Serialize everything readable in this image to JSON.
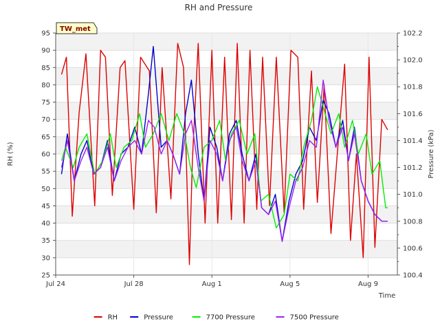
{
  "chart_data": {
    "type": "line",
    "title": "RH and Pressure",
    "site_badge": "TW_met",
    "xlabel": "Time",
    "ylabel": "RH (%)",
    "y2label": "Pressure (kPa)",
    "x_range_days": [
      0,
      17.5
    ],
    "x_ticks": [
      {
        "label": "Jul 24",
        "day": 0
      },
      {
        "label": "Jul 28",
        "day": 4
      },
      {
        "label": "Aug 1",
        "day": 8
      },
      {
        "label": "Aug 5",
        "day": 12
      },
      {
        "label": "Aug 9",
        "day": 16
      }
    ],
    "ylim": [
      25,
      95
    ],
    "y_ticks": [
      25,
      30,
      35,
      40,
      45,
      50,
      55,
      60,
      65,
      70,
      75,
      80,
      85,
      90,
      95
    ],
    "y2lim": [
      100.4,
      102.2
    ],
    "y2_ticks": [
      "100.4",
      "100.6",
      "100.8",
      "101.0",
      "101.2",
      "101.4",
      "101.6",
      "101.8",
      "102.0",
      "102.2"
    ],
    "grid": true,
    "legend_position": "bottom",
    "series": [
      {
        "name": "RH",
        "axis": "left",
        "color": "#dd0000",
        "x": [
          0.3,
          0.55,
          0.85,
          1.2,
          1.55,
          2.0,
          2.3,
          2.55,
          2.9,
          3.3,
          3.55,
          4.0,
          4.35,
          4.8,
          5.15,
          5.45,
          5.9,
          6.25,
          6.55,
          6.85,
          7.0,
          7.3,
          7.65,
          8.0,
          8.3,
          8.65,
          9.0,
          9.3,
          9.65,
          9.95,
          10.3,
          10.6,
          10.95,
          11.3,
          11.7,
          12.05,
          12.4,
          12.7,
          13.1,
          13.4,
          13.75,
          14.1,
          14.45,
          14.8,
          15.1,
          15.4,
          15.75,
          16.05,
          16.35,
          16.7,
          17.0
        ],
        "y": [
          83,
          88,
          42,
          72,
          89,
          45,
          90,
          88,
          48,
          85,
          87,
          44,
          88,
          84,
          43,
          85,
          47,
          92,
          85,
          28,
          58,
          92,
          40,
          90,
          40,
          88,
          41,
          92,
          40,
          90,
          44,
          88,
          45,
          88,
          43,
          90,
          88,
          44,
          84,
          46,
          80,
          37,
          62,
          86,
          35,
          60,
          30,
          88,
          33,
          70,
          67
        ]
      },
      {
        "name": "Pressure",
        "axis": "right",
        "color": "#0000cc",
        "x": [
          0.3,
          0.6,
          0.95,
          1.3,
          1.6,
          1.95,
          2.3,
          2.65,
          3.0,
          3.35,
          3.7,
          4.05,
          4.4,
          4.75,
          5.0,
          5.4,
          5.7,
          6.0,
          6.35,
          6.65,
          6.95,
          7.3,
          7.6,
          7.9,
          8.25,
          8.55,
          8.9,
          9.25,
          9.55,
          9.9,
          10.25,
          10.55,
          10.9,
          11.25,
          11.6,
          11.95,
          12.3,
          12.65,
          13.0,
          13.35,
          13.7,
          14.0,
          14.35,
          14.7,
          15.0,
          15.3,
          15.65,
          16.0,
          16.35,
          16.7,
          17.0
        ],
        "y": [
          101.15,
          101.45,
          101.1,
          101.3,
          101.4,
          101.15,
          101.2,
          101.4,
          101.1,
          101.3,
          101.35,
          101.5,
          101.3,
          101.75,
          102.1,
          101.35,
          101.4,
          101.3,
          101.15,
          101.6,
          101.85,
          101.3,
          100.95,
          101.5,
          101.35,
          101.1,
          101.45,
          101.55,
          101.3,
          101.1,
          101.3,
          100.9,
          100.85,
          101.0,
          100.65,
          100.95,
          101.15,
          101.25,
          101.5,
          101.4,
          101.7,
          101.6,
          101.35,
          101.55,
          101.25,
          101.5,
          101.1,
          100.95,
          100.85,
          100.8,
          100.8
        ]
      },
      {
        "name": "7700 Pressure",
        "axis": "right",
        "color": "#00ee00",
        "x": [
          0.3,
          0.5,
          0.9,
          1.2,
          1.6,
          2.0,
          2.4,
          2.8,
          3.1,
          3.5,
          3.9,
          4.3,
          4.6,
          5.0,
          5.4,
          5.8,
          6.2,
          6.6,
          6.9,
          7.2,
          7.6,
          8.0,
          8.4,
          8.7,
          9.0,
          9.4,
          9.8,
          10.2,
          10.5,
          10.9,
          11.3,
          11.7,
          12.0,
          12.4,
          12.7,
          13.1,
          13.4,
          13.8,
          14.1,
          14.5,
          14.8,
          15.2,
          15.5,
          15.9,
          16.2,
          16.6,
          16.9,
          17.0
        ],
        "y": [
          101.25,
          101.35,
          101.2,
          101.35,
          101.45,
          101.15,
          101.25,
          101.45,
          101.2,
          101.35,
          101.4,
          101.6,
          101.35,
          101.45,
          101.6,
          101.4,
          101.6,
          101.45,
          101.2,
          101.05,
          101.35,
          101.4,
          101.55,
          101.25,
          101.45,
          101.55,
          101.3,
          101.45,
          100.95,
          101.0,
          100.75,
          100.85,
          101.15,
          101.1,
          101.35,
          101.55,
          101.8,
          101.6,
          101.45,
          101.6,
          101.35,
          101.55,
          101.3,
          101.45,
          101.15,
          101.25,
          100.9,
          100.9
        ]
      },
      {
        "name": "7500 Pressure",
        "axis": "right",
        "color": "#9922ee",
        "x": [
          0.3,
          0.6,
          0.95,
          1.3,
          1.6,
          1.95,
          2.3,
          2.65,
          3.0,
          3.35,
          3.7,
          4.05,
          4.4,
          4.75,
          5.05,
          5.4,
          5.7,
          6.0,
          6.35,
          6.65,
          6.95,
          7.3,
          7.6,
          7.9,
          8.25,
          8.55,
          8.9,
          9.25,
          9.55,
          9.9,
          10.25,
          10.55,
          10.9,
          11.25,
          11.6,
          11.95,
          12.3,
          12.65,
          13.0,
          13.35,
          13.7,
          14.0,
          14.35,
          14.7,
          15.0,
          15.3,
          15.65,
          16.0,
          16.35,
          16.7,
          17.0
        ],
        "y": [
          101.2,
          101.4,
          101.1,
          101.25,
          101.35,
          101.15,
          101.2,
          101.35,
          101.1,
          101.25,
          101.35,
          101.4,
          101.3,
          101.55,
          101.5,
          101.3,
          101.4,
          101.3,
          101.15,
          101.45,
          101.55,
          101.2,
          100.95,
          101.4,
          101.3,
          101.1,
          101.4,
          101.5,
          101.25,
          101.1,
          101.25,
          100.9,
          100.85,
          100.95,
          100.65,
          100.9,
          101.1,
          101.2,
          101.4,
          101.35,
          101.85,
          101.55,
          101.35,
          101.5,
          101.25,
          101.45,
          101.1,
          100.95,
          100.85,
          100.8,
          100.8
        ]
      }
    ]
  }
}
